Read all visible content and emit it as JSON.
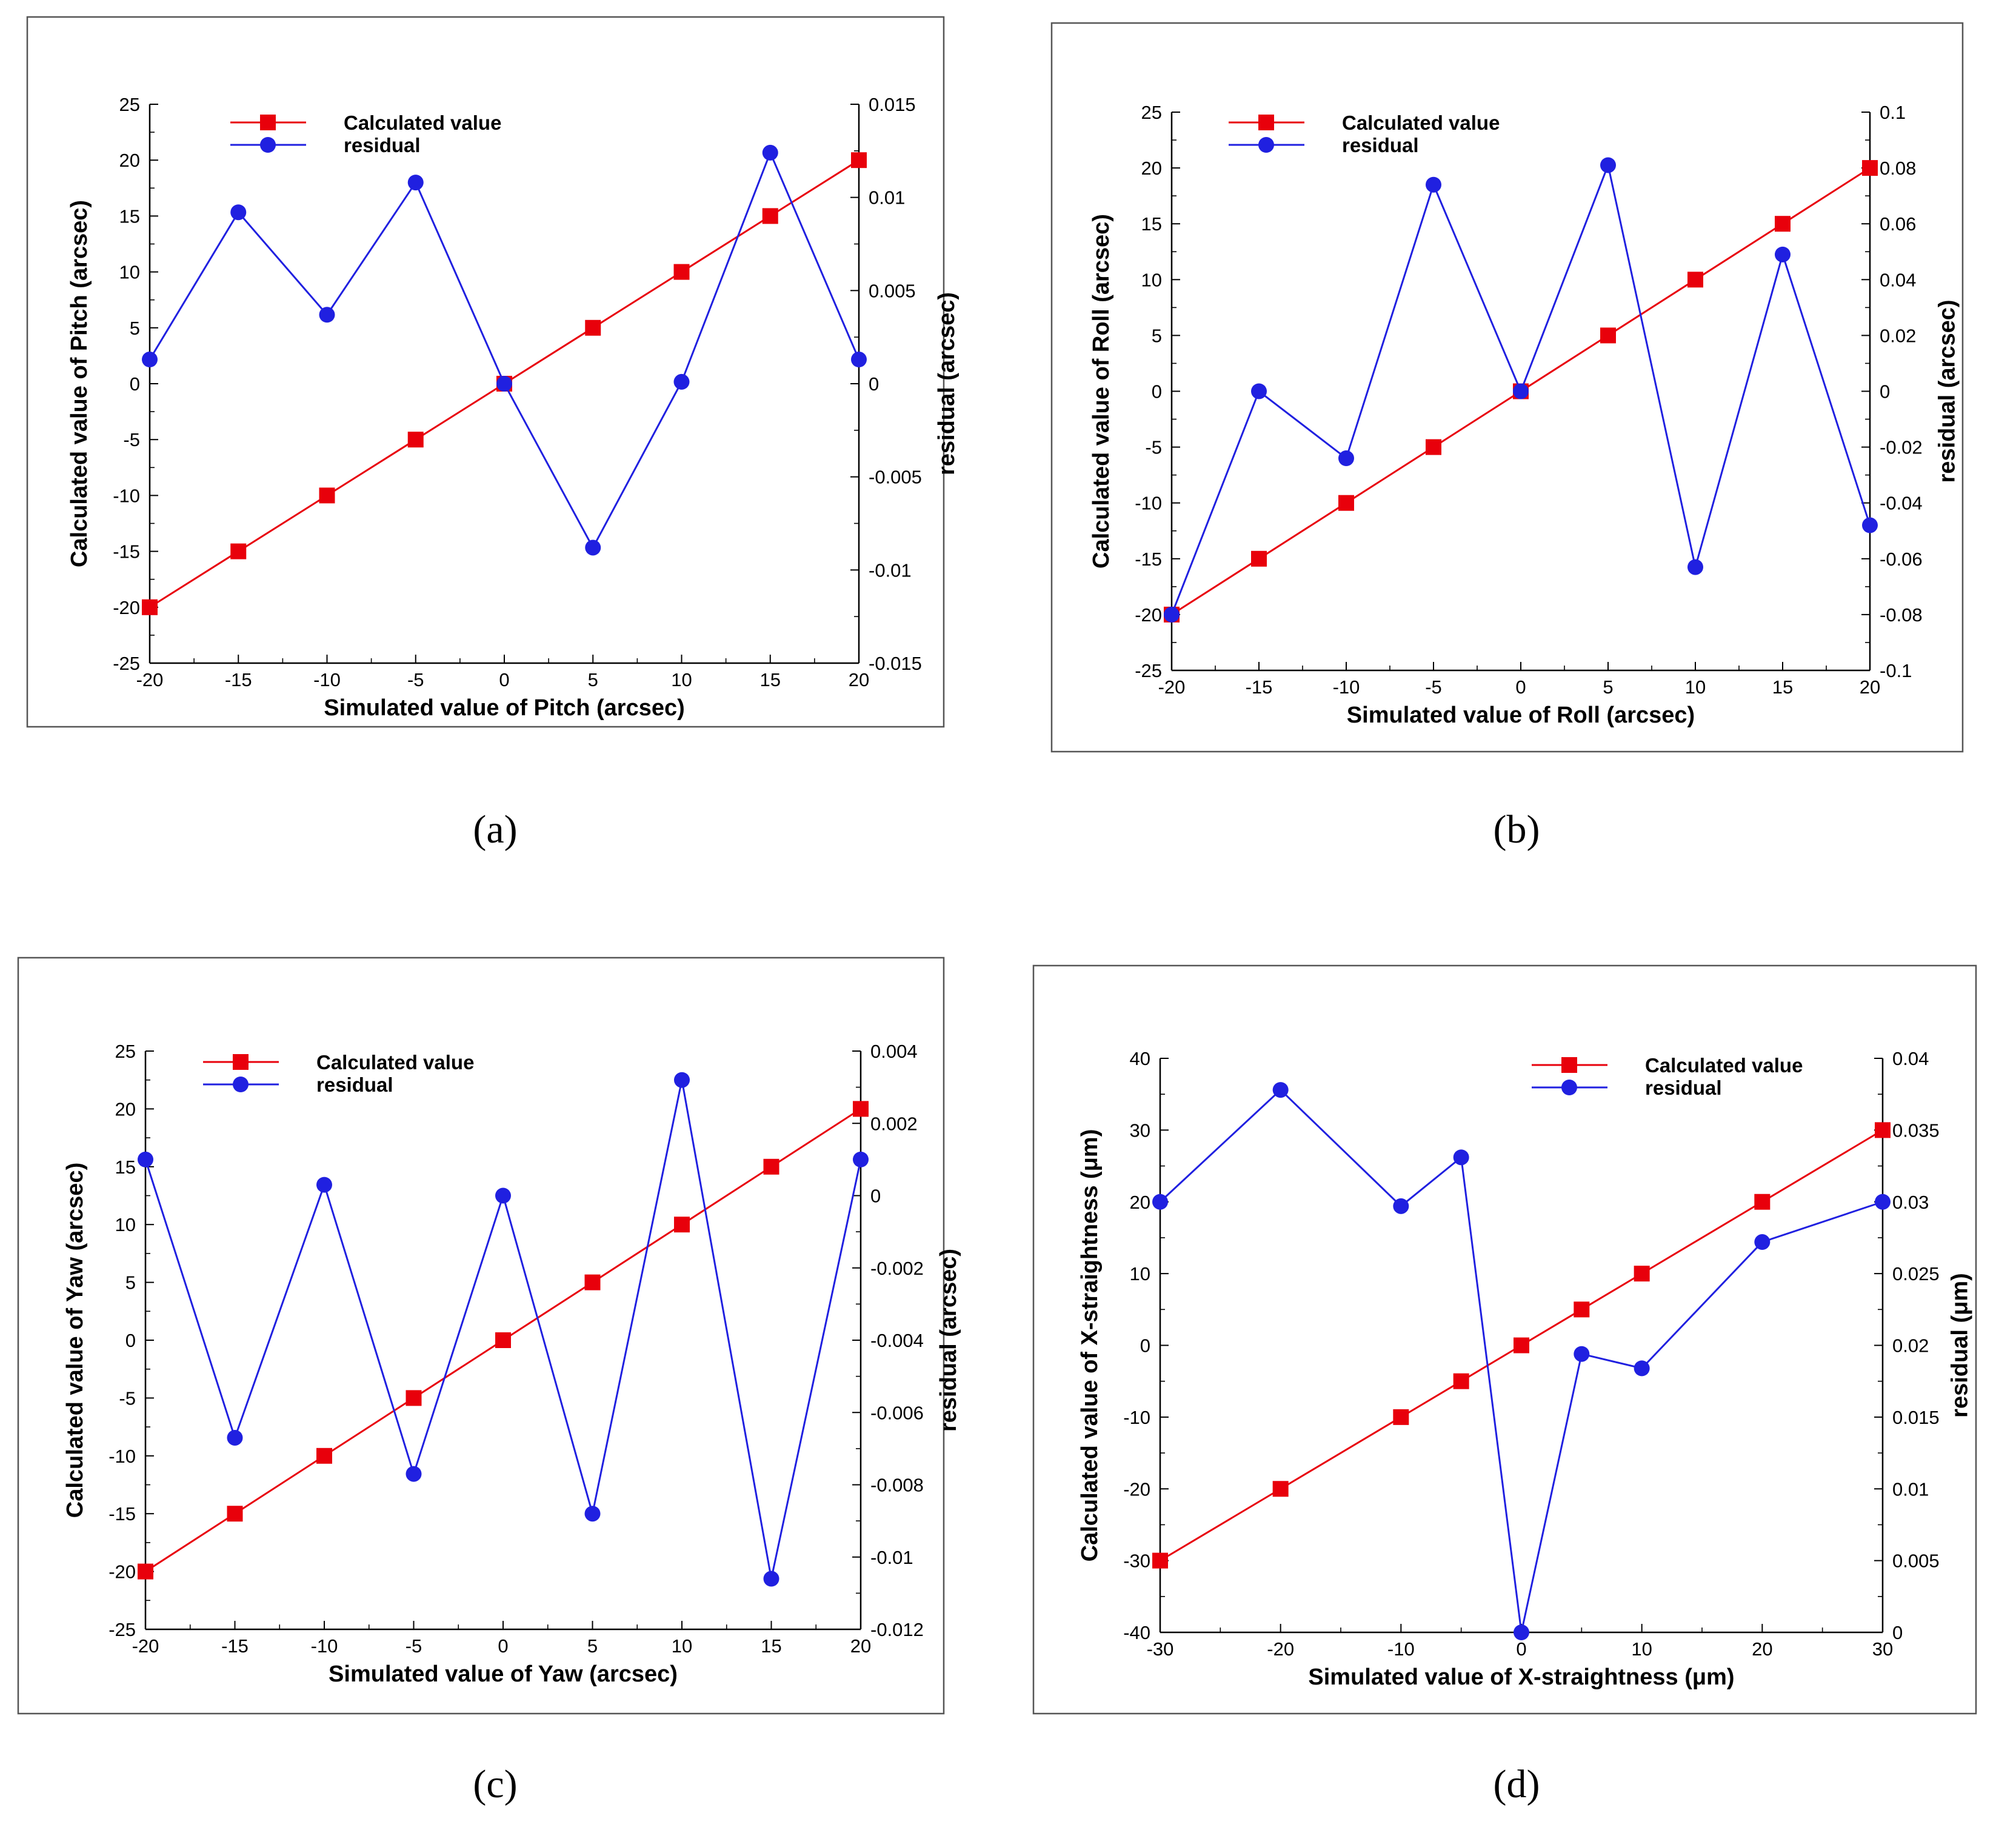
{
  "colors": {
    "calculated": "#e8000b",
    "residual": "#2020e0",
    "frame": "#555555",
    "axis": "#000000"
  },
  "chart_data": [
    {
      "type": "line",
      "panel_label": "(a)",
      "xlabel": "Simulated value of Pitch (arcsec)",
      "ylabel": "Calculated value of Pitch (arcsec)",
      "y2label": "residual (arcsec)",
      "xlim": [
        -20,
        20
      ],
      "ylim": [
        -25,
        25
      ],
      "y2lim": [
        -0.015,
        0.015
      ],
      "xticks": [
        -20,
        -15,
        -10,
        -5,
        0,
        5,
        10,
        15,
        20
      ],
      "xtick_labels": [
        "-20",
        "-15",
        "-10",
        "-5",
        "0",
        "5",
        "10",
        "15",
        "20"
      ],
      "yticks": [
        -25,
        -20,
        -15,
        -10,
        -5,
        0,
        5,
        10,
        15,
        20,
        25
      ],
      "ytick_labels": [
        "-25",
        "-20",
        "-15",
        "-10",
        "-5",
        "0",
        "5",
        "10",
        "15",
        "20",
        "25"
      ],
      "y2ticks": [
        -0.015,
        -0.01,
        -0.005,
        0,
        0.005,
        0.01,
        0.015
      ],
      "y2tick_labels": [
        "-0.015",
        "-0.01",
        "-0.005",
        "0",
        "0.005",
        "0.01",
        "0.015"
      ],
      "legend_position": "top-left",
      "series": [
        {
          "name": "Calculated value",
          "axis": "left",
          "marker": "square",
          "x": [
            -20,
            -15,
            -10,
            -5,
            0,
            5,
            10,
            15,
            20
          ],
          "values": [
            -20,
            -15,
            -10,
            -5,
            0,
            5,
            10,
            15,
            20
          ]
        },
        {
          "name": "residual",
          "axis": "right",
          "marker": "circle",
          "x": [
            -20,
            -15,
            -10,
            -5,
            0,
            5,
            10,
            15,
            20
          ],
          "values": [
            0.0013,
            0.0092,
            0.0037,
            0.0108,
            0.0,
            -0.0088,
            0.0001,
            0.0124,
            0.0013
          ]
        }
      ]
    },
    {
      "type": "line",
      "panel_label": "(b)",
      "xlabel": "Simulated value of Roll (arcsec)",
      "ylabel": "Calculated value of Roll (arcsec)",
      "y2label": "residual (arcsec)",
      "xlim": [
        -20,
        20
      ],
      "ylim": [
        -25,
        25
      ],
      "y2lim": [
        -0.1,
        0.1
      ],
      "xticks": [
        -20,
        -15,
        -10,
        -5,
        0,
        5,
        10,
        15,
        20
      ],
      "xtick_labels": [
        "-20",
        "-15",
        "-10",
        "-5",
        "0",
        "5",
        "10",
        "15",
        "20"
      ],
      "yticks": [
        -25,
        -20,
        -15,
        -10,
        -5,
        0,
        5,
        10,
        15,
        20,
        25
      ],
      "ytick_labels": [
        "-25",
        "-20",
        "-15",
        "-10",
        "-5",
        "0",
        "5",
        "10",
        "15",
        "20",
        "25"
      ],
      "y2ticks": [
        -0.1,
        -0.08,
        -0.06,
        -0.04,
        -0.02,
        0,
        0.02,
        0.04,
        0.06,
        0.08,
        0.1
      ],
      "y2tick_labels": [
        "-0.1",
        "-0.08",
        "-0.06",
        "-0.04",
        "-0.02",
        "0",
        "0.02",
        "0.04",
        "0.06",
        "0.08",
        "0.1"
      ],
      "legend_position": "top-left",
      "series": [
        {
          "name": "Calculated value",
          "axis": "left",
          "marker": "square",
          "x": [
            -20,
            -15,
            -10,
            -5,
            0,
            5,
            10,
            15,
            20
          ],
          "values": [
            -20,
            -15,
            -10,
            -5,
            0,
            5,
            10,
            15,
            20
          ]
        },
        {
          "name": "residual",
          "axis": "right",
          "marker": "circle",
          "x": [
            -20,
            -15,
            -10,
            -5,
            0,
            5,
            10,
            15,
            20
          ],
          "values": [
            -0.08,
            0.0,
            -0.024,
            0.074,
            0.0,
            0.081,
            -0.063,
            0.049,
            -0.048
          ]
        }
      ]
    },
    {
      "type": "line",
      "panel_label": "(c)",
      "xlabel": "Simulated value of Yaw (arcsec)",
      "ylabel": "Calculated value of Yaw (arcsec)",
      "y2label": "residual (arcsec)",
      "xlim": [
        -20,
        20
      ],
      "ylim": [
        -25,
        25
      ],
      "y2lim": [
        -0.012,
        0.004
      ],
      "xticks": [
        -20,
        -15,
        -10,
        -5,
        0,
        5,
        10,
        15,
        20
      ],
      "xtick_labels": [
        "-20",
        "-15",
        "-10",
        "-5",
        "0",
        "5",
        "10",
        "15",
        "20"
      ],
      "yticks": [
        -25,
        -20,
        -15,
        -10,
        -5,
        0,
        5,
        10,
        15,
        20,
        25
      ],
      "ytick_labels": [
        "-25",
        "-20",
        "-15",
        "-10",
        "-5",
        "0",
        "5",
        "10",
        "15",
        "20",
        "25"
      ],
      "y2ticks": [
        -0.012,
        -0.01,
        -0.008,
        -0.006,
        -0.004,
        -0.002,
        0,
        0.002,
        0.004
      ],
      "y2tick_labels": [
        "-0.012",
        "-0.01",
        "-0.008",
        "-0.006",
        "-0.004",
        "-0.002",
        "0",
        "0.002",
        "0.004"
      ],
      "legend_position": "top-left",
      "series": [
        {
          "name": "Calculated value",
          "axis": "left",
          "marker": "square",
          "x": [
            -20,
            -15,
            -10,
            -5,
            0,
            5,
            10,
            15,
            20
          ],
          "values": [
            -20,
            -15,
            -10,
            -5,
            0,
            5,
            10,
            15,
            20
          ]
        },
        {
          "name": "residual",
          "axis": "right",
          "marker": "circle",
          "x": [
            -20,
            -15,
            -10,
            -5,
            0,
            5,
            10,
            15,
            20
          ],
          "values": [
            0.001,
            -0.0067,
            0.0003,
            -0.0077,
            0.0,
            -0.0088,
            0.0032,
            -0.0106,
            0.001
          ]
        }
      ]
    },
    {
      "type": "line",
      "panel_label": "(d)",
      "xlabel": "Simulated value of X-straightness (μm)",
      "ylabel": "Calculated value of X-straightness (μm)",
      "y2label": "residual (μm)",
      "xlim": [
        -30,
        30
      ],
      "ylim": [
        -40,
        40
      ],
      "y2lim": [
        0,
        0.04
      ],
      "xticks": [
        -30,
        -20,
        -10,
        0,
        10,
        20,
        30
      ],
      "xtick_labels": [
        "-30",
        "-20",
        "-10",
        "0",
        "10",
        "20",
        "30"
      ],
      "yticks": [
        -40,
        -30,
        -20,
        -10,
        0,
        10,
        20,
        30,
        40
      ],
      "ytick_labels": [
        "-40",
        "-30",
        "-20",
        "-10",
        "0",
        "10",
        "20",
        "30",
        "40"
      ],
      "y2ticks": [
        0,
        0.005,
        0.01,
        0.015,
        0.02,
        0.025,
        0.03,
        0.035,
        0.04
      ],
      "y2tick_labels": [
        "0",
        "0.005",
        "0.01",
        "0.015",
        "0.02",
        "0.025",
        "0.03",
        "0.035",
        "0.04"
      ],
      "legend_position": "top-right",
      "series": [
        {
          "name": "Calculated value",
          "axis": "left",
          "marker": "square",
          "x": [
            -30,
            -20,
            -10,
            -5,
            0,
            5,
            10,
            20,
            30
          ],
          "values": [
            -30,
            -20,
            -10,
            -5,
            0,
            5,
            10,
            20,
            30
          ]
        },
        {
          "name": "residual",
          "axis": "right",
          "marker": "circle",
          "x": [
            -30,
            -20,
            -10,
            -5,
            0,
            5,
            10,
            20,
            30
          ],
          "values": [
            0.03,
            0.0378,
            0.0297,
            0.0331,
            0.0,
            0.0194,
            0.0184,
            0.0272,
            0.03
          ]
        }
      ]
    }
  ]
}
